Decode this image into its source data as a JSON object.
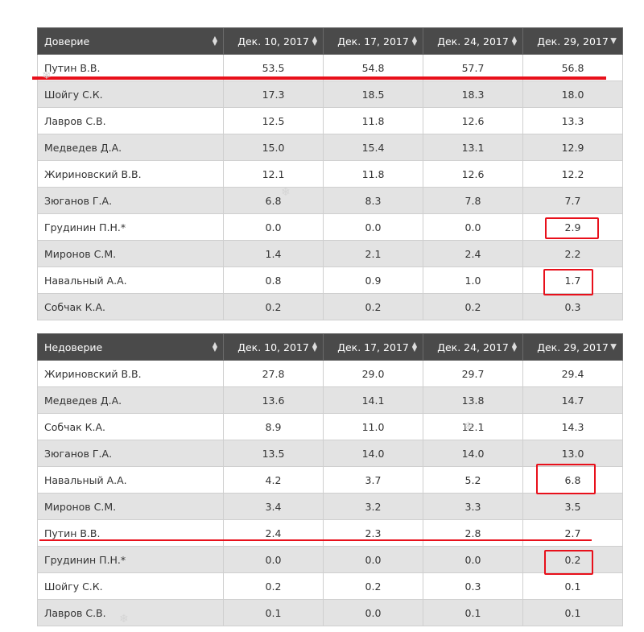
{
  "trust_table": {
    "header": {
      "name_col": "Доверие",
      "dates": [
        "Дек. 10, 2017",
        "Дек. 17, 2017",
        "Дек. 24, 2017",
        "Дек. 29, 2017"
      ]
    },
    "rows": [
      {
        "name": "Путин В.В.",
        "values": [
          "53.5",
          "54.8",
          "57.7",
          "56.8"
        ]
      },
      {
        "name": "Шойгу С.К.",
        "values": [
          "17.3",
          "18.5",
          "18.3",
          "18.0"
        ]
      },
      {
        "name": "Лавров С.В.",
        "values": [
          "12.5",
          "11.8",
          "12.6",
          "13.3"
        ]
      },
      {
        "name": "Медведев Д.А.",
        "values": [
          "15.0",
          "15.4",
          "13.1",
          "12.9"
        ]
      },
      {
        "name": "Жириновский В.В.",
        "values": [
          "12.1",
          "11.8",
          "12.6",
          "12.2"
        ]
      },
      {
        "name": "Зюганов Г.А.",
        "values": [
          "6.8",
          "8.3",
          "7.8",
          "7.7"
        ]
      },
      {
        "name": "Грудинин П.Н.*",
        "values": [
          "0.0",
          "0.0",
          "0.0",
          "2.9"
        ]
      },
      {
        "name": "Миронов С.М.",
        "values": [
          "1.4",
          "2.1",
          "2.4",
          "2.2"
        ]
      },
      {
        "name": "Навальный А.А.",
        "values": [
          "0.8",
          "0.9",
          "1.0",
          "1.7"
        ]
      },
      {
        "name": "Собчак К.А.",
        "values": [
          "0.2",
          "0.2",
          "0.2",
          "0.3"
        ]
      }
    ]
  },
  "distrust_table": {
    "header": {
      "name_col": "Недоверие",
      "dates": [
        "Дек. 10, 2017",
        "Дек. 17, 2017",
        "Дек. 24, 2017",
        "Дек. 29, 2017"
      ]
    },
    "rows": [
      {
        "name": "Жириновский В.В.",
        "values": [
          "27.8",
          "29.0",
          "29.7",
          "29.4"
        ]
      },
      {
        "name": "Медведев Д.А.",
        "values": [
          "13.6",
          "14.1",
          "13.8",
          "14.7"
        ]
      },
      {
        "name": "Собчак К.А.",
        "values": [
          "8.9",
          "11.0",
          "12.1",
          "14.3"
        ]
      },
      {
        "name": "Зюганов Г.А.",
        "values": [
          "13.5",
          "14.0",
          "14.0",
          "13.0"
        ]
      },
      {
        "name": "Навальный А.А.",
        "values": [
          "4.2",
          "3.7",
          "5.2",
          "6.8"
        ]
      },
      {
        "name": "Миронов С.М.",
        "values": [
          "3.4",
          "3.2",
          "3.3",
          "3.5"
        ]
      },
      {
        "name": "Путин В.В.",
        "values": [
          "2.4",
          "2.3",
          "2.8",
          "2.7"
        ]
      },
      {
        "name": "Грудинин П.Н.*",
        "values": [
          "0.0",
          "0.0",
          "0.0",
          "0.2"
        ]
      },
      {
        "name": "Шойгу С.К.",
        "values": [
          "0.2",
          "0.2",
          "0.3",
          "0.1"
        ]
      },
      {
        "name": "Лавров С.В.",
        "values": [
          "0.1",
          "0.0",
          "0.1",
          "0.1"
        ]
      }
    ]
  },
  "icons": {
    "sort_both": "sort-both-icon",
    "sort_desc": "sort-desc-icon",
    "snowflake": "snowflake-icon"
  },
  "colors": {
    "header_bg": "#4a4a4a",
    "row_alt": "#e3e3e3",
    "annotation_red": "#e8101b"
  }
}
